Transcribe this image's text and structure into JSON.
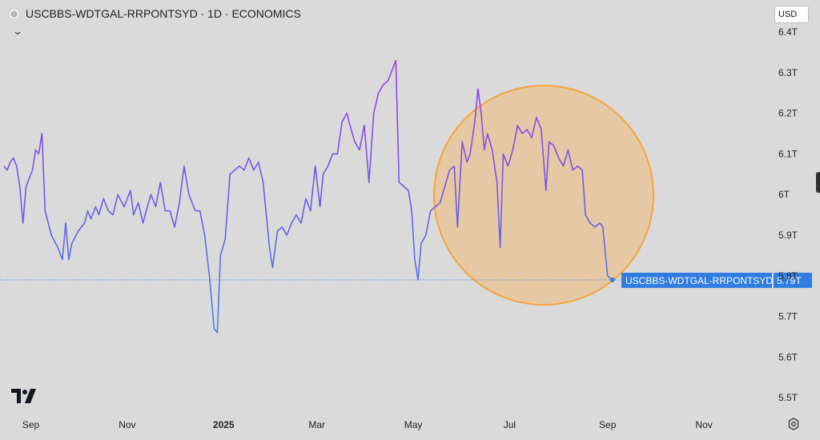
{
  "header": {
    "title": "USCBBS-WDTGAL-RRPONTSYD · 1D · ECONOMICS"
  },
  "currency_label": "USD",
  "price_tag": {
    "series_label": "USCBBS-WDTGAL-RRPONTSYD",
    "value_label": "5.79T"
  },
  "colors": {
    "background": "#dadada",
    "line_high": "#9b3fe8",
    "line_mid": "#6a5ee6",
    "line_low": "#3d86e8",
    "accent_blue": "#2f7de1",
    "circle_fill": "#f3b66f",
    "circle_stroke": "#f5a33a"
  },
  "icons": {
    "collapse": "chevron-down-icon",
    "logo": "tradingview-logo-icon",
    "settings": "gear-icon"
  },
  "annotation": {
    "shape": "circle"
  },
  "chart_data": {
    "type": "line",
    "title": "USCBBS-WDTGAL-RRPONTSYD · 1D · ECONOMICS",
    "xlabel": "",
    "ylabel": "",
    "x_tick_labels": [
      "Sep",
      "Nov",
      "2025",
      "Mar",
      "May",
      "Jul",
      "Sep",
      "Nov"
    ],
    "y_tick_labels": [
      "6.4T",
      "6.3T",
      "6.2T",
      "6.1T",
      "6T",
      "5.9T",
      "5.8T",
      "5.7T",
      "5.6T",
      "5.5T"
    ],
    "y_tick_values": [
      6.4,
      6.3,
      6.2,
      6.1,
      6.0,
      5.9,
      5.8,
      5.7,
      5.6,
      5.5
    ],
    "ylim": [
      5.45,
      6.42
    ],
    "x_range": [
      "2024-08-15",
      "2025-12-12"
    ],
    "last_value": 5.79,
    "grid": false,
    "series": [
      {
        "name": "USCBBS-WDTGAL-RRPONTSYD",
        "points": [
          [
            "2024-08-15",
            6.07
          ],
          [
            "2024-08-17",
            6.06
          ],
          [
            "2024-08-19",
            6.08
          ],
          [
            "2024-08-21",
            6.09
          ],
          [
            "2024-08-23",
            6.07
          ],
          [
            "2024-08-25",
            6.02
          ],
          [
            "2024-08-27",
            5.93
          ],
          [
            "2024-08-29",
            6.02
          ],
          [
            "2024-08-31",
            6.04
          ],
          [
            "2024-09-02",
            6.06
          ],
          [
            "2024-09-04",
            6.11
          ],
          [
            "2024-09-06",
            6.1
          ],
          [
            "2024-09-08",
            6.15
          ],
          [
            "2024-09-10",
            5.96
          ],
          [
            "2024-09-14",
            5.9
          ],
          [
            "2024-09-18",
            5.87
          ],
          [
            "2024-09-21",
            5.84
          ],
          [
            "2024-09-23",
            5.93
          ],
          [
            "2024-09-25",
            5.84
          ],
          [
            "2024-09-27",
            5.88
          ],
          [
            "2024-10-01",
            5.91
          ],
          [
            "2024-10-05",
            5.93
          ],
          [
            "2024-10-07",
            5.96
          ],
          [
            "2024-10-09",
            5.94
          ],
          [
            "2024-10-12",
            5.97
          ],
          [
            "2024-10-14",
            5.95
          ],
          [
            "2024-10-17",
            5.99
          ],
          [
            "2024-10-20",
            5.96
          ],
          [
            "2024-10-23",
            5.95
          ],
          [
            "2024-10-26",
            6.0
          ],
          [
            "2024-10-30",
            5.97
          ],
          [
            "2024-11-03",
            6.01
          ],
          [
            "2024-11-05",
            5.95
          ],
          [
            "2024-11-08",
            5.98
          ],
          [
            "2024-11-11",
            5.93
          ],
          [
            "2024-11-13",
            5.96
          ],
          [
            "2024-11-16",
            6.0
          ],
          [
            "2024-11-19",
            5.97
          ],
          [
            "2024-11-22",
            6.03
          ],
          [
            "2024-11-25",
            5.96
          ],
          [
            "2024-11-28",
            5.96
          ],
          [
            "2024-12-01",
            5.92
          ],
          [
            "2024-12-04",
            5.98
          ],
          [
            "2024-12-07",
            6.07
          ],
          [
            "2024-12-10",
            6.0
          ],
          [
            "2024-12-14",
            5.96
          ],
          [
            "2024-12-17",
            5.96
          ],
          [
            "2024-12-20",
            5.9
          ],
          [
            "2024-12-23",
            5.8
          ],
          [
            "2024-12-26",
            5.67
          ],
          [
            "2024-12-28",
            5.66
          ],
          [
            "2024-12-30",
            5.85
          ],
          [
            "2025-01-02",
            5.89
          ],
          [
            "2025-01-05",
            6.05
          ],
          [
            "2025-01-08",
            6.06
          ],
          [
            "2025-01-11",
            6.07
          ],
          [
            "2025-01-14",
            6.06
          ],
          [
            "2025-01-17",
            6.09
          ],
          [
            "2025-01-20",
            6.06
          ],
          [
            "2025-01-23",
            6.08
          ],
          [
            "2025-01-26",
            6.03
          ],
          [
            "2025-01-30",
            5.87
          ],
          [
            "2025-02-01",
            5.82
          ],
          [
            "2025-02-04",
            5.91
          ],
          [
            "2025-02-07",
            5.92
          ],
          [
            "2025-02-10",
            5.9
          ],
          [
            "2025-02-13",
            5.93
          ],
          [
            "2025-02-16",
            5.95
          ],
          [
            "2025-02-19",
            5.93
          ],
          [
            "2025-02-22",
            5.99
          ],
          [
            "2025-02-25",
            5.96
          ],
          [
            "2025-02-28",
            6.07
          ],
          [
            "2025-03-03",
            5.97
          ],
          [
            "2025-03-05",
            6.05
          ],
          [
            "2025-03-08",
            6.07
          ],
          [
            "2025-03-11",
            6.1
          ],
          [
            "2025-03-14",
            6.1
          ],
          [
            "2025-03-17",
            6.18
          ],
          [
            "2025-03-20",
            6.2
          ],
          [
            "2025-03-22",
            6.17
          ],
          [
            "2025-03-25",
            6.13
          ],
          [
            "2025-03-28",
            6.11
          ],
          [
            "2025-03-31",
            6.17
          ],
          [
            "2025-04-03",
            6.03
          ],
          [
            "2025-04-06",
            6.2
          ],
          [
            "2025-04-09",
            6.25
          ],
          [
            "2025-04-12",
            6.27
          ],
          [
            "2025-04-15",
            6.28
          ],
          [
            "2025-04-18",
            6.31
          ],
          [
            "2025-04-20",
            6.33
          ],
          [
            "2025-04-22",
            6.03
          ],
          [
            "2025-04-25",
            6.02
          ],
          [
            "2025-04-28",
            6.01
          ],
          [
            "2025-04-30",
            5.96
          ],
          [
            "2025-05-02",
            5.84
          ],
          [
            "2025-05-04",
            5.79
          ],
          [
            "2025-05-06",
            5.88
          ],
          [
            "2025-05-09",
            5.9
          ],
          [
            "2025-05-12",
            5.96
          ],
          [
            "2025-05-15",
            5.97
          ],
          [
            "2025-05-18",
            5.98
          ],
          [
            "2025-05-21",
            6.02
          ],
          [
            "2025-05-24",
            6.06
          ],
          [
            "2025-05-27",
            6.07
          ],
          [
            "2025-05-29",
            5.92
          ],
          [
            "2025-06-01",
            6.13
          ],
          [
            "2025-06-04",
            6.08
          ],
          [
            "2025-06-06",
            6.1
          ],
          [
            "2025-06-09",
            6.18
          ],
          [
            "2025-06-11",
            6.26
          ],
          [
            "2025-06-13",
            6.2
          ],
          [
            "2025-06-15",
            6.11
          ],
          [
            "2025-06-17",
            6.15
          ],
          [
            "2025-06-20",
            6.11
          ],
          [
            "2025-06-23",
            6.03
          ],
          [
            "2025-06-25",
            5.87
          ],
          [
            "2025-06-27",
            6.1
          ],
          [
            "2025-06-30",
            6.07
          ],
          [
            "2025-07-03",
            6.11
          ],
          [
            "2025-07-06",
            6.17
          ],
          [
            "2025-07-09",
            6.15
          ],
          [
            "2025-07-12",
            6.16
          ],
          [
            "2025-07-15",
            6.14
          ],
          [
            "2025-07-18",
            6.19
          ],
          [
            "2025-07-21",
            6.16
          ],
          [
            "2025-07-24",
            6.01
          ],
          [
            "2025-07-26",
            6.13
          ],
          [
            "2025-07-29",
            6.12
          ],
          [
            "2025-08-01",
            6.09
          ],
          [
            "2025-08-04",
            6.07
          ],
          [
            "2025-08-07",
            6.11
          ],
          [
            "2025-08-10",
            6.06
          ],
          [
            "2025-08-13",
            6.07
          ],
          [
            "2025-08-16",
            6.06
          ],
          [
            "2025-08-18",
            5.95
          ],
          [
            "2025-08-21",
            5.93
          ],
          [
            "2025-08-24",
            5.92
          ],
          [
            "2025-08-27",
            5.93
          ],
          [
            "2025-08-29",
            5.92
          ],
          [
            "2025-09-01",
            5.8
          ],
          [
            "2025-09-04",
            5.79
          ]
        ]
      }
    ]
  }
}
